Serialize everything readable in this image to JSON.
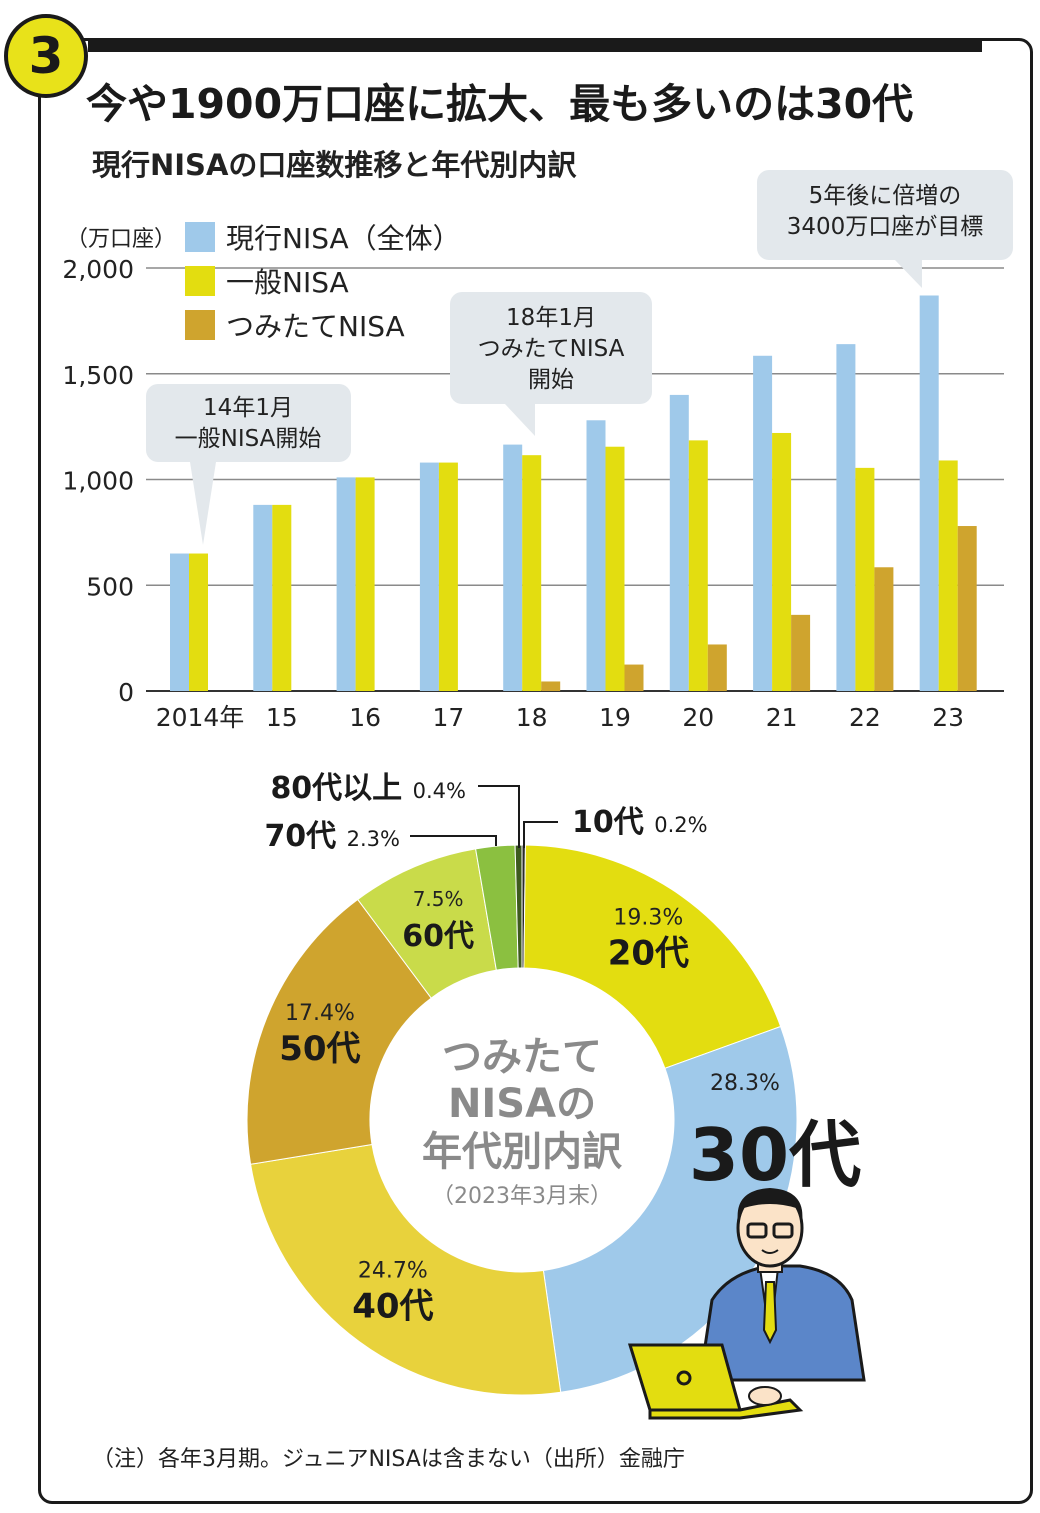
{
  "badge": "3",
  "title": "今や1900万口座に拡大、最も多いのは30代",
  "subtitle": "現行NISAの口座数推移と年代別内訳",
  "note": "（注）各年3月期。ジュニアNISAは含まない（出所）金融庁",
  "colors": {
    "current_nisa": "#9fc9ea",
    "general_nisa": "#e3dd10",
    "tsumitate_nisa": "#cfa42e",
    "callout": "#e3e8ec",
    "age_10": "#2b2b2b",
    "age_20": "#e3dd10",
    "age_30": "#9fc9ea",
    "age_40": "#e8d23c",
    "age_50": "#cfa42e",
    "age_60": "#c9db4a",
    "age_70": "#8bc040",
    "age_80": "#3d5a1e"
  },
  "chart_data": [
    {
      "type": "bar",
      "ylabel": "（万口座）",
      "ylim": [
        0,
        2000
      ],
      "yticks": [
        "0",
        "500",
        "1,000",
        "1,500",
        "2,000"
      ],
      "categories": [
        "2014年",
        "15",
        "16",
        "17",
        "18",
        "19",
        "20",
        "21",
        "22",
        "23"
      ],
      "series": [
        {
          "name": "現行NISA（全体）",
          "values": [
            650,
            880,
            1010,
            1080,
            1165,
            1280,
            1400,
            1585,
            1640,
            1870
          ]
        },
        {
          "name": "一般NISA",
          "values": [
            650,
            880,
            1010,
            1080,
            1115,
            1155,
            1185,
            1220,
            1055,
            1090
          ]
        },
        {
          "name": "つみたてNISA",
          "values": [
            0,
            0,
            0,
            0,
            45,
            125,
            220,
            360,
            585,
            780
          ]
        }
      ],
      "annotations": [
        {
          "lines": [
            "14年1月",
            "一般NISA開始"
          ]
        },
        {
          "lines": [
            "18年1月",
            "つみたてNISA",
            "開始"
          ]
        },
        {
          "lines": [
            "5年後に倍増の",
            "3400万口座が目標"
          ]
        }
      ]
    },
    {
      "type": "pie",
      "center_label": [
        "つみたて",
        "NISAの",
        "年代別内訳"
      ],
      "center_sub": "（2023年3月末）",
      "categories": [
        "10代",
        "20代",
        "30代",
        "40代",
        "50代",
        "60代",
        "70代",
        "80代以上"
      ],
      "values": [
        0.2,
        19.3,
        28.3,
        24.7,
        17.4,
        7.5,
        2.3,
        0.4
      ],
      "value_labels": [
        "0.2%",
        "19.3%",
        "28.3%",
        "24.7%",
        "17.4%",
        "7.5%",
        "2.3%",
        "0.4%"
      ]
    }
  ]
}
